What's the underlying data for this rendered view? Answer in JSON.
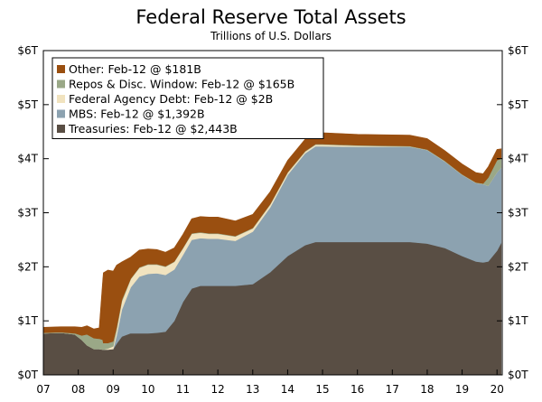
{
  "chart_data": {
    "type": "area",
    "title": "Federal Reserve Total Assets",
    "subtitle": "Trillions of U.S. Dollars",
    "xlabel": "",
    "ylabel": "",
    "x_range": [
      2007.0,
      2020.15
    ],
    "ylim": [
      0,
      6
    ],
    "x_tick_labels": [
      "07",
      "08",
      "09",
      "10",
      "11",
      "12",
      "13",
      "14",
      "15",
      "16",
      "17",
      "18",
      "19",
      "20"
    ],
    "y_tick_labels_left": [
      "$0T",
      "$1T",
      "$2T",
      "$3T",
      "$4T",
      "$5T",
      "$6T"
    ],
    "y_tick_labels_right": [
      "$0T",
      "$1T",
      "$2T",
      "$3T",
      "$4T",
      "$5T",
      "$6T"
    ],
    "grid": false,
    "legend_position": "top-left",
    "stack_order": [
      "Treasuries",
      "MBS",
      "Federal Agency Debt",
      "Repos & Disc. Window",
      "Other"
    ],
    "x": [
      2007.0,
      2007.5,
      2007.9,
      2008.1,
      2008.25,
      2008.45,
      2008.6,
      2008.7,
      2008.72,
      2008.85,
      2009.0,
      2009.1,
      2009.25,
      2009.5,
      2009.75,
      2010.0,
      2010.25,
      2010.5,
      2010.75,
      2011.0,
      2011.25,
      2011.5,
      2011.75,
      2012.0,
      2012.5,
      2013.0,
      2013.5,
      2014.0,
      2014.5,
      2014.8,
      2015.0,
      2016.0,
      2017.0,
      2017.5,
      2018.0,
      2018.5,
      2019.0,
      2019.4,
      2019.6,
      2019.75,
      2020.0,
      2020.12
    ],
    "series": [
      {
        "name": "Treasuries",
        "label": "Treasuries: Feb-12 @ $2,443B",
        "color": "#594e44",
        "values": [
          0.77,
          0.78,
          0.75,
          0.65,
          0.55,
          0.48,
          0.48,
          0.47,
          0.47,
          0.47,
          0.48,
          0.58,
          0.71,
          0.77,
          0.77,
          0.77,
          0.78,
          0.8,
          1.0,
          1.35,
          1.6,
          1.65,
          1.65,
          1.65,
          1.65,
          1.68,
          1.9,
          2.2,
          2.4,
          2.46,
          2.46,
          2.46,
          2.46,
          2.46,
          2.43,
          2.35,
          2.2,
          2.1,
          2.08,
          2.1,
          2.3,
          2.443
        ]
      },
      {
        "name": "MBS",
        "label": "MBS: Feb-12 @ $1,392B",
        "color": "#8ca2b0",
        "values": [
          0,
          0,
          0,
          0,
          0,
          0,
          0,
          0,
          0,
          0,
          0,
          0.15,
          0.5,
          0.85,
          1.05,
          1.1,
          1.1,
          1.05,
          0.95,
          0.87,
          0.9,
          0.88,
          0.87,
          0.87,
          0.83,
          0.97,
          1.2,
          1.5,
          1.7,
          1.77,
          1.77,
          1.76,
          1.76,
          1.76,
          1.73,
          1.6,
          1.5,
          1.45,
          1.45,
          1.4,
          1.45,
          1.392
        ]
      },
      {
        "name": "Federal Agency Debt",
        "label": "Federal Agency Debt: Feb-12 @ $2B",
        "color": "#f1e3bf",
        "values": [
          0,
          0,
          0,
          0,
          0,
          0,
          0,
          0,
          0,
          0.02,
          0.05,
          0.1,
          0.15,
          0.15,
          0.16,
          0.17,
          0.16,
          0.15,
          0.14,
          0.12,
          0.11,
          0.1,
          0.09,
          0.09,
          0.08,
          0.06,
          0.05,
          0.04,
          0.03,
          0.03,
          0.03,
          0.02,
          0.01,
          0.005,
          0.002,
          0.002,
          0.002,
          0.002,
          0.002,
          0.002,
          0.002,
          0.002
        ]
      },
      {
        "name": "Repos & Disc. Window",
        "label": "Repos & Disc. Window: Feb-12 @ $165B",
        "color": "#9aa887",
        "values": [
          0.01,
          0.01,
          0.02,
          0.08,
          0.2,
          0.2,
          0.19,
          0.18,
          0.12,
          0.1,
          0.09,
          0.05,
          0.03,
          0.01,
          0.01,
          0.01,
          0.01,
          0.01,
          0.01,
          0.01,
          0.01,
          0.01,
          0.01,
          0.01,
          0.01,
          0.01,
          0.01,
          0.01,
          0.01,
          0.01,
          0.01,
          0.01,
          0.01,
          0.01,
          0.01,
          0.01,
          0.01,
          0.01,
          0.01,
          0.15,
          0.22,
          0.165
        ]
      },
      {
        "name": "Other",
        "label": "Other: Feb-12 @ $181B",
        "color": "#9a4f10",
        "values": [
          0.1,
          0.1,
          0.12,
          0.15,
          0.16,
          0.17,
          0.2,
          1.1,
          1.3,
          1.35,
          1.3,
          1.15,
          0.7,
          0.4,
          0.32,
          0.28,
          0.27,
          0.26,
          0.25,
          0.25,
          0.27,
          0.29,
          0.3,
          0.3,
          0.28,
          0.25,
          0.23,
          0.22,
          0.22,
          0.22,
          0.21,
          0.2,
          0.2,
          0.2,
          0.2,
          0.19,
          0.19,
          0.18,
          0.18,
          0.2,
          0.2,
          0.181
        ]
      }
    ]
  }
}
